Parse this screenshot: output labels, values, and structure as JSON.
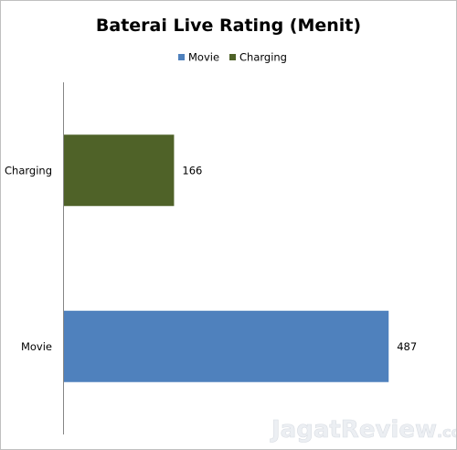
{
  "chart_data": {
    "type": "bar",
    "orientation": "horizontal",
    "title": "Baterai Live Rating (Menit)",
    "categories": [
      "Charging",
      "Movie"
    ],
    "series": [
      {
        "name": "Movie",
        "color": "#4f81bd",
        "values": [
          null,
          487
        ]
      },
      {
        "name": "Charging",
        "color": "#4f6228",
        "values": [
          166,
          null
        ]
      }
    ],
    "data_labels": true,
    "xlim": [
      0,
      540
    ],
    "grid": false,
    "legend_position": "top"
  },
  "watermark": {
    "text": "JagatReview",
    "suffix": ".com"
  }
}
